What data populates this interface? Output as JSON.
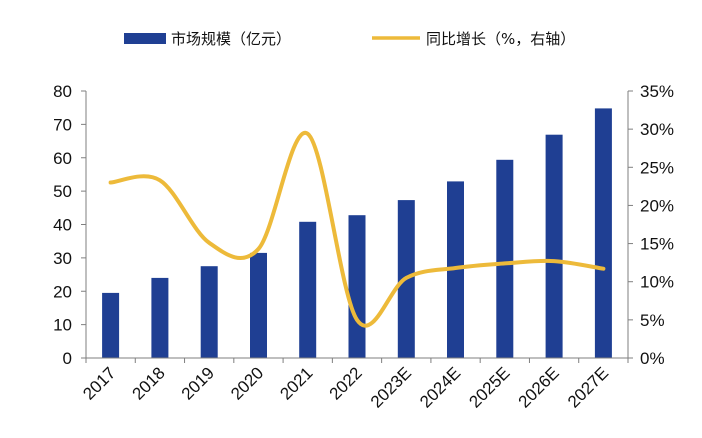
{
  "chart_data": {
    "type": "bar+line",
    "categories": [
      "2017",
      "2018",
      "2019",
      "2020",
      "2021",
      "2022",
      "2023E",
      "2024E",
      "2025E",
      "2026E",
      "2027E"
    ],
    "series": [
      {
        "name": "市场规模（亿元）",
        "type": "bar",
        "axis": "left",
        "values": [
          19.5,
          24,
          27.5,
          31.5,
          40.8,
          42.8,
          47.3,
          52.9,
          59.4,
          66.9,
          74.8
        ]
      },
      {
        "name": "同比增长（%，右轴）",
        "type": "line",
        "axis": "right",
        "smooth": true,
        "values": [
          23.0,
          23.3,
          15.1,
          14.3,
          29.4,
          5.0,
          10.5,
          11.8,
          12.4,
          12.7,
          11.7
        ]
      }
    ],
    "left_axis": {
      "min": 0,
      "max": 80,
      "ticks": [
        0,
        10,
        20,
        30,
        40,
        50,
        60,
        70,
        80
      ]
    },
    "right_axis": {
      "min": 0,
      "max": 35,
      "ticks": [
        "0%",
        "5%",
        "10%",
        "15%",
        "20%",
        "25%",
        "30%",
        "35%"
      ]
    },
    "legend_position": "top",
    "grid": false,
    "colors": {
      "bar": "#1F3F93",
      "line": "#EDBA3A",
      "axis": "#7F7F7F"
    }
  }
}
